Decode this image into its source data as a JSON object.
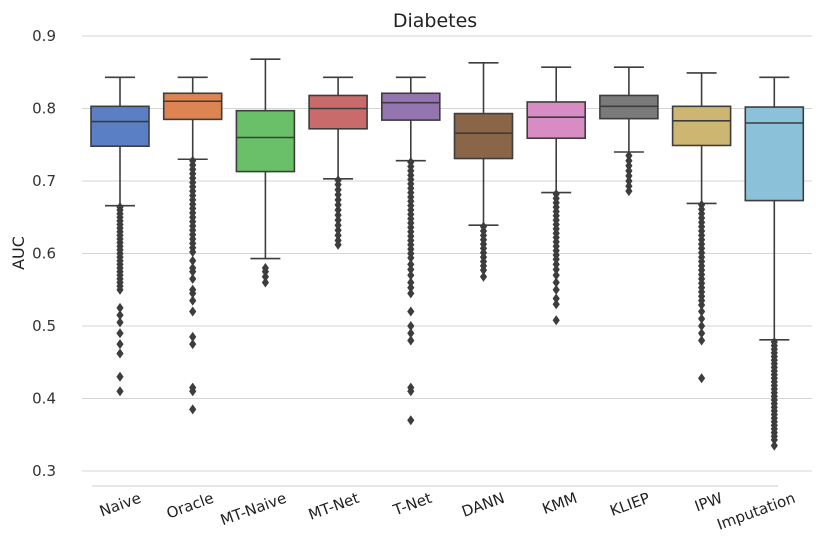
{
  "chart_data": {
    "type": "box",
    "title": "Diabetes",
    "xlabel": "",
    "ylabel": "AUC",
    "ylim": [
      0.3,
      0.9
    ],
    "yticks": [
      "0.3",
      "0.4",
      "0.5",
      "0.6",
      "0.7",
      "0.8",
      "0.9"
    ],
    "grid": true,
    "categories": [
      "Naive",
      "Oracle",
      "MT-Naive",
      "MT-Net",
      "T-Net",
      "DANN",
      "KMM",
      "KLIEP",
      "IPW",
      "Imputation"
    ],
    "colors": [
      "#5a7fc4",
      "#dd8452",
      "#6abf69",
      "#c96b6b",
      "#9575b0",
      "#8b6548",
      "#d88cc4",
      "#7a7a7a",
      "#cdb671",
      "#8bc2d9"
    ],
    "series": [
      {
        "name": "Naive",
        "whisker_low": 0.666,
        "q1": 0.748,
        "median": 0.782,
        "q3": 0.803,
        "whisker_high": 0.843,
        "outliers": [
          0.664,
          0.66,
          0.655,
          0.65,
          0.645,
          0.64,
          0.635,
          0.63,
          0.625,
          0.62,
          0.615,
          0.61,
          0.605,
          0.6,
          0.595,
          0.59,
          0.585,
          0.58,
          0.575,
          0.57,
          0.565,
          0.56,
          0.555,
          0.55,
          0.525,
          0.515,
          0.505,
          0.49,
          0.475,
          0.462,
          0.43,
          0.41
        ]
      },
      {
        "name": "Oracle",
        "whisker_low": 0.73,
        "q1": 0.785,
        "median": 0.81,
        "q3": 0.821,
        "whisker_high": 0.843,
        "outliers": [
          0.728,
          0.722,
          0.716,
          0.71,
          0.704,
          0.698,
          0.692,
          0.686,
          0.68,
          0.674,
          0.668,
          0.662,
          0.656,
          0.65,
          0.644,
          0.638,
          0.632,
          0.626,
          0.62,
          0.614,
          0.608,
          0.602,
          0.59,
          0.58,
          0.575,
          0.565,
          0.55,
          0.545,
          0.535,
          0.52,
          0.485,
          0.475,
          0.415,
          0.41,
          0.385
        ]
      },
      {
        "name": "MT-Naive",
        "whisker_low": 0.593,
        "q1": 0.713,
        "median": 0.76,
        "q3": 0.797,
        "whisker_high": 0.868,
        "outliers": [
          0.58,
          0.575,
          0.568,
          0.56
        ]
      },
      {
        "name": "MT-Net",
        "whisker_low": 0.703,
        "q1": 0.772,
        "median": 0.8,
        "q3": 0.818,
        "whisker_high": 0.843,
        "outliers": [
          0.701,
          0.695,
          0.688,
          0.681,
          0.674,
          0.667,
          0.66,
          0.653,
          0.646,
          0.639,
          0.632,
          0.625,
          0.618,
          0.612
        ]
      },
      {
        "name": "T-Net",
        "whisker_low": 0.728,
        "q1": 0.784,
        "median": 0.808,
        "q3": 0.821,
        "whisker_high": 0.843,
        "outliers": [
          0.726,
          0.72,
          0.714,
          0.708,
          0.702,
          0.696,
          0.69,
          0.684,
          0.678,
          0.672,
          0.666,
          0.66,
          0.654,
          0.648,
          0.642,
          0.636,
          0.63,
          0.624,
          0.618,
          0.612,
          0.606,
          0.6,
          0.594,
          0.585,
          0.578,
          0.57,
          0.56,
          0.553,
          0.545,
          0.52,
          0.5,
          0.49,
          0.48,
          0.415,
          0.41,
          0.37
        ]
      },
      {
        "name": "DANN",
        "whisker_low": 0.639,
        "q1": 0.731,
        "median": 0.766,
        "q3": 0.793,
        "whisker_high": 0.863,
        "outliers": [
          0.637,
          0.631,
          0.625,
          0.619,
          0.613,
          0.607,
          0.601,
          0.595,
          0.589,
          0.583,
          0.577,
          0.568
        ]
      },
      {
        "name": "KMM",
        "whisker_low": 0.684,
        "q1": 0.759,
        "median": 0.788,
        "q3": 0.809,
        "whisker_high": 0.857,
        "outliers": [
          0.682,
          0.676,
          0.67,
          0.664,
          0.658,
          0.652,
          0.646,
          0.64,
          0.634,
          0.628,
          0.622,
          0.616,
          0.61,
          0.604,
          0.598,
          0.592,
          0.585,
          0.578,
          0.57,
          0.56,
          0.55,
          0.538,
          0.53,
          0.508
        ]
      },
      {
        "name": "KLIEP",
        "whisker_low": 0.74,
        "q1": 0.786,
        "median": 0.803,
        "q3": 0.818,
        "whisker_high": 0.857,
        "outliers": [
          0.735,
          0.728,
          0.721,
          0.714,
          0.707,
          0.7,
          0.693,
          0.686
        ]
      },
      {
        "name": "IPW",
        "whisker_low": 0.669,
        "q1": 0.749,
        "median": 0.783,
        "q3": 0.803,
        "whisker_high": 0.849,
        "outliers": [
          0.667,
          0.661,
          0.655,
          0.649,
          0.643,
          0.637,
          0.631,
          0.625,
          0.619,
          0.613,
          0.607,
          0.601,
          0.595,
          0.589,
          0.583,
          0.577,
          0.571,
          0.565,
          0.559,
          0.553,
          0.547,
          0.541,
          0.535,
          0.529,
          0.52,
          0.51,
          0.5,
          0.49,
          0.48,
          0.428
        ]
      },
      {
        "name": "Imputation",
        "whisker_low": 0.481,
        "q1": 0.673,
        "median": 0.78,
        "q3": 0.802,
        "whisker_high": 0.843,
        "outliers": [
          0.478,
          0.473,
          0.468,
          0.463,
          0.458,
          0.453,
          0.448,
          0.443,
          0.438,
          0.433,
          0.428,
          0.423,
          0.418,
          0.413,
          0.408,
          0.403,
          0.398,
          0.393,
          0.388,
          0.383,
          0.378,
          0.373,
          0.368,
          0.363,
          0.358,
          0.353,
          0.348,
          0.343,
          0.335
        ]
      }
    ]
  }
}
